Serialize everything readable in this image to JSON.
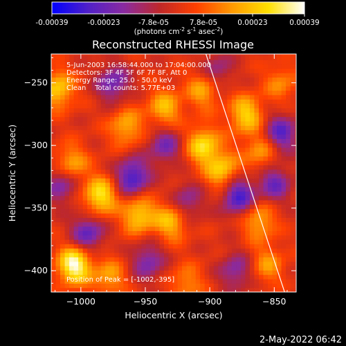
{
  "colorbar": {
    "ticks": [
      "-0.00039",
      "-0.00023",
      "-7.8e-05",
      "7.8e-05",
      "0.00023",
      "0.00039"
    ],
    "units": "(photons cm",
    "units_exp1": "-2",
    "units_mid": " s",
    "units_exp2": "-1",
    "units_tail": " asec",
    "units_exp3": "-2",
    "units_close": ")"
  },
  "chart_data": {
    "type": "heatmap",
    "title": "Reconstructed RHESSI Image",
    "xlabel": "Heliocentric X (arcsec)",
    "ylabel": "Heliocentric Y (arcsec)",
    "xlim": [
      -1023,
      -833
    ],
    "ylim": [
      -417,
      -227
    ],
    "x_ticks": [
      -1000,
      -950,
      -900,
      -850
    ],
    "y_ticks": [
      -250,
      -300,
      -350,
      -400
    ],
    "x_tick_labels": [
      "−1000",
      "−950",
      "−900",
      "−850"
    ],
    "y_tick_labels": [
      "−250",
      "−300",
      "−350",
      "−400"
    ],
    "clim": [
      -0.00039,
      0.00039
    ],
    "colormap": [
      "#0000ff",
      "#5020c8",
      "#8a2aa0",
      "#c02828",
      "#ff4000",
      "#ff9a00",
      "#ffe000",
      "#ffffff"
    ],
    "limb_line": [
      [
        -903,
        -227
      ],
      [
        -842,
        -417
      ]
    ],
    "hotspots": [
      {
        "x": -1005,
        "y": -395,
        "v": 0.00039
      },
      {
        "x": -985,
        "y": -340,
        "v": 0.0003
      },
      {
        "x": -955,
        "y": -355,
        "v": 0.00026
      },
      {
        "x": -930,
        "y": -360,
        "v": 0.00024
      },
      {
        "x": -1008,
        "y": -315,
        "v": 0.00022
      },
      {
        "x": -1018,
        "y": -255,
        "v": 0.00025
      },
      {
        "x": -965,
        "y": -285,
        "v": 0.0002
      },
      {
        "x": -935,
        "y": -270,
        "v": 0.00022
      },
      {
        "x": -905,
        "y": -255,
        "v": 0.0002
      },
      {
        "x": -890,
        "y": -320,
        "v": 0.00025
      },
      {
        "x": -905,
        "y": -300,
        "v": 0.00028
      },
      {
        "x": -872,
        "y": -275,
        "v": 0.00026
      },
      {
        "x": -860,
        "y": -305,
        "v": 0.00018
      },
      {
        "x": -862,
        "y": -360,
        "v": 0.0002
      },
      {
        "x": -855,
        "y": -395,
        "v": 0.00016
      },
      {
        "x": -978,
        "y": -405,
        "v": 0.00018
      },
      {
        "x": -918,
        "y": -410,
        "v": 0.00015
      },
      {
        "x": -845,
        "y": -250,
        "v": 0.00014
      }
    ],
    "coldspots": [
      {
        "x": -995,
        "y": -370,
        "v": -0.00025
      },
      {
        "x": -960,
        "y": -325,
        "v": -0.0003
      },
      {
        "x": -975,
        "y": -250,
        "v": -0.00022
      },
      {
        "x": -935,
        "y": -300,
        "v": -0.0002
      },
      {
        "x": -918,
        "y": -345,
        "v": -0.00018
      },
      {
        "x": -878,
        "y": -340,
        "v": -0.0003
      },
      {
        "x": -850,
        "y": -330,
        "v": -0.00022
      },
      {
        "x": -845,
        "y": -290,
        "v": -0.00026
      },
      {
        "x": -948,
        "y": -392,
        "v": -0.0002
      },
      {
        "x": -1015,
        "y": -330,
        "v": -0.00022
      },
      {
        "x": -880,
        "y": -400,
        "v": -0.00018
      },
      {
        "x": -895,
        "y": -240,
        "v": -0.00016
      }
    ],
    "annotations": [
      "5-Jun-2003 16:58:44.000 to 17:04:00.000",
      "Detectors: 3F 4F 5F 6F 7F 8F, Att 0",
      "Energy Range: 25.0 - 50.0 keV",
      "Clean    Total counts: 5.77E+03",
      "Position of Peak = [-1002,-395]"
    ]
  },
  "timestamp": "2-May-2022 06:42"
}
